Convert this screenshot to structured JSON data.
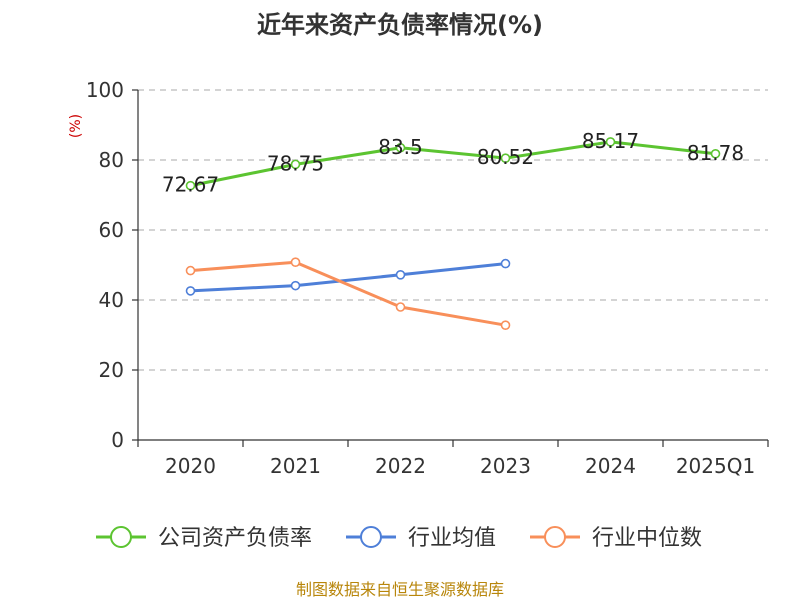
{
  "chart_data": {
    "type": "line",
    "title": "近年来资产负债率情况(%)",
    "ylabel": "(%)",
    "xlabel": "",
    "categories": [
      "2020",
      "2021",
      "2022",
      "2023",
      "2024",
      "2025Q1"
    ],
    "ylim": [
      0,
      100
    ],
    "yticks": [
      0,
      20,
      40,
      60,
      80,
      100
    ],
    "grid": true,
    "legend_position": "bottom",
    "series": [
      {
        "name": "公司资产负债率",
        "color": "#5cc431",
        "values": [
          72.67,
          78.75,
          83.5,
          80.52,
          85.17,
          81.78
        ],
        "labels": [
          "72.67",
          "78.75",
          "83.5",
          "80.52",
          "85.17",
          "81.78"
        ]
      },
      {
        "name": "行业均值",
        "color": "#4e7fd8",
        "values": [
          42.6,
          44.1,
          47.2,
          50.4,
          null,
          null
        ]
      },
      {
        "name": "行业中位数",
        "color": "#f88f5a",
        "values": [
          48.4,
          50.8,
          38.0,
          32.8,
          null,
          null
        ]
      }
    ]
  },
  "source": "制图数据来自恒生聚源数据库"
}
